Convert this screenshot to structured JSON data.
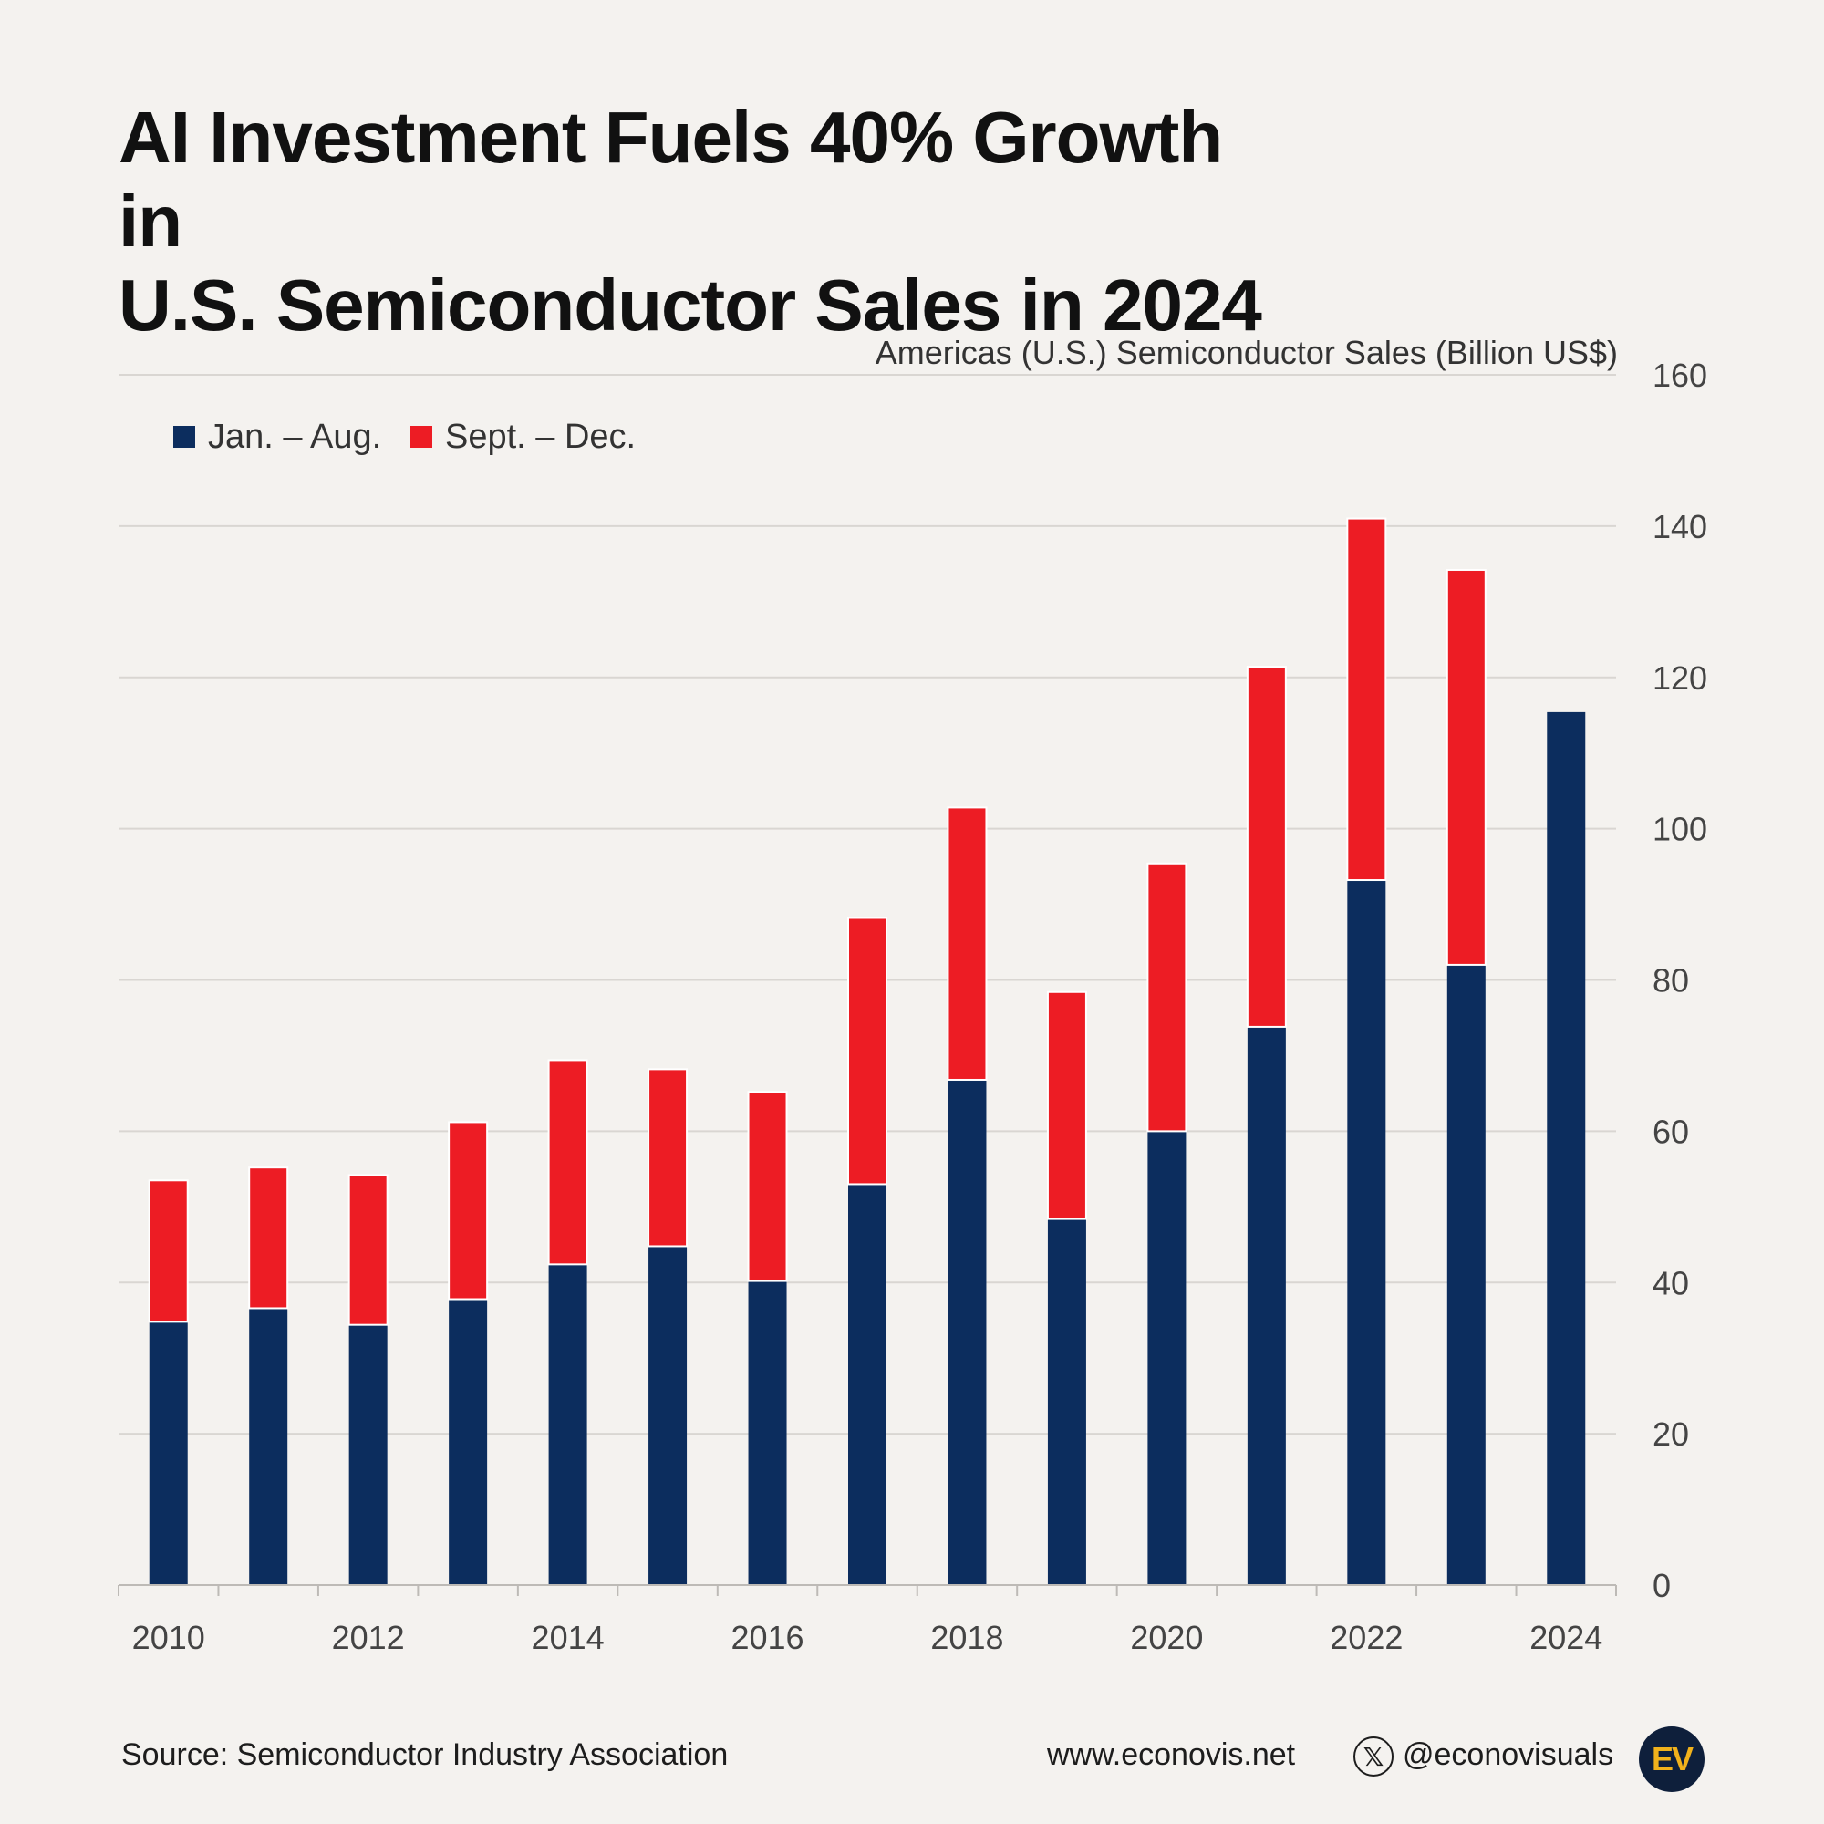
{
  "title": {
    "line1": "AI Investment Fuels 40% Growth in",
    "line2": "U.S. Semiconductor Sales in 2024"
  },
  "chart_data": {
    "type": "bar",
    "stacked": true,
    "unit_label": "Americas (U.S.) Semiconductor Sales (Billion US$)",
    "categories": [
      "2010",
      "2011",
      "2012",
      "2013",
      "2014",
      "2015",
      "2016",
      "2017",
      "2018",
      "2019",
      "2020",
      "2021",
      "2022",
      "2023",
      "2024"
    ],
    "x_tick_labels": [
      "2010",
      "2012",
      "2014",
      "2016",
      "2018",
      "2020",
      "2022",
      "2024"
    ],
    "series": [
      {
        "name": "Jan. – Aug.",
        "color": "#0c2d5e",
        "values": [
          34.8,
          36.6,
          34.4,
          37.8,
          42.4,
          44.8,
          40.2,
          53,
          66.8,
          48.4,
          60,
          73.8,
          93.2,
          82,
          115.4
        ]
      },
      {
        "name": "Sept. – Dec.",
        "color": "#ed1c24",
        "values": [
          18.7,
          18.6,
          19.8,
          23.4,
          27,
          23.4,
          25,
          35.2,
          36,
          30,
          35.4,
          47.6,
          47.8,
          52.2,
          0
        ]
      }
    ],
    "ylim": [
      0,
      160
    ],
    "y_ticks": [
      0,
      20,
      40,
      60,
      80,
      100,
      120,
      140,
      160
    ],
    "y_axis_position": "right",
    "legend_position": "top-left",
    "grid": true
  },
  "footer": {
    "source": "Source: Semiconductor Industry Association",
    "website": "www.econovis.net",
    "x_icon_glyph": "𝕏",
    "handle": "@econovisuals",
    "logo_text": "EV"
  }
}
